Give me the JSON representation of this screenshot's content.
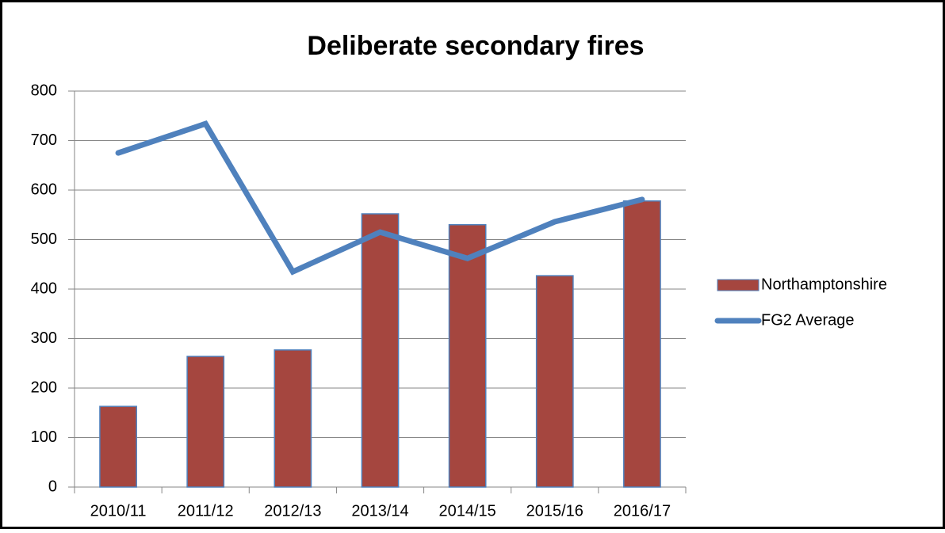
{
  "chart_data": {
    "type": "bar_line",
    "title": "Deliberate secondary fires",
    "categories": [
      "2010/11",
      "2011/12",
      "2012/13",
      "2013/14",
      "2014/15",
      "2015/16",
      "2016/17"
    ],
    "series": [
      {
        "name": "Northamptonshire",
        "type": "bar",
        "color": "#a5463f",
        "values": [
          163,
          264,
          277,
          552,
          530,
          427,
          578
        ]
      },
      {
        "name": "FG2 Average",
        "type": "line",
        "color": "#4f81bd",
        "values": [
          675,
          734,
          435,
          515,
          462,
          536,
          581
        ]
      }
    ],
    "ylim": [
      0,
      800
    ],
    "yticks": [
      0,
      100,
      200,
      300,
      400,
      500,
      600,
      700,
      800
    ],
    "grid": true,
    "legend": "right"
  }
}
